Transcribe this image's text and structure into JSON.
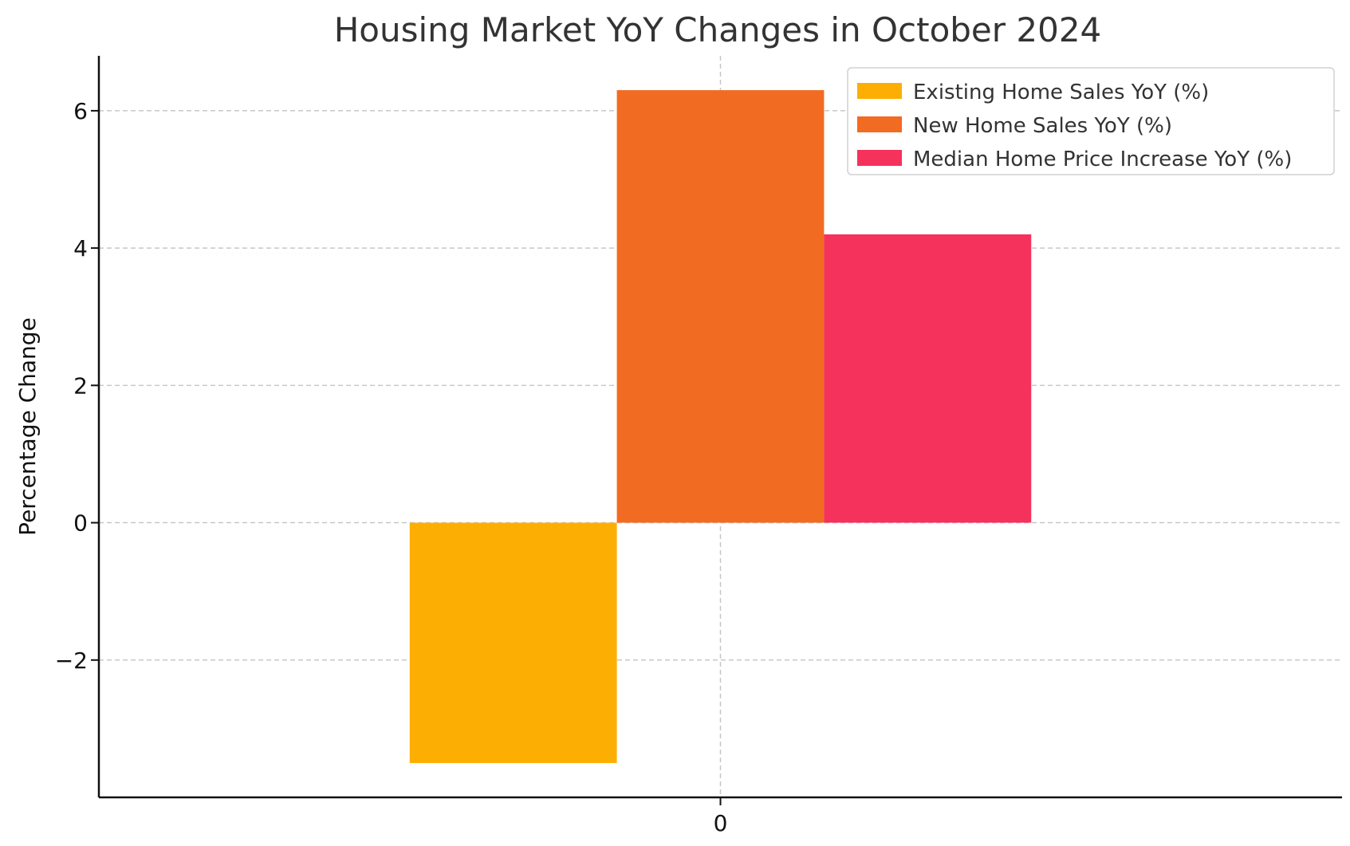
{
  "chart_data": {
    "type": "bar",
    "title": "Housing Market YoY Changes in October 2024",
    "xlabel": "",
    "ylabel": "Percentage Change",
    "categories": [
      "0"
    ],
    "series": [
      {
        "name": "Existing Home Sales YoY (%)",
        "values": [
          -3.5
        ],
        "color": "#FDAE02"
      },
      {
        "name": "New Home Sales YoY (%)",
        "values": [
          6.3
        ],
        "color": "#F26B22"
      },
      {
        "name": "Median Home Price Increase YoY (%)",
        "values": [
          4.2
        ],
        "color": "#F4325B"
      }
    ],
    "ylim": [
      -4.0,
      6.8
    ],
    "yticks": [
      -2,
      0,
      2,
      4,
      6
    ],
    "ytick_labels": [
      "−2",
      "0",
      "2",
      "4",
      "6"
    ],
    "grid": true,
    "legend_placement": "top-right"
  }
}
